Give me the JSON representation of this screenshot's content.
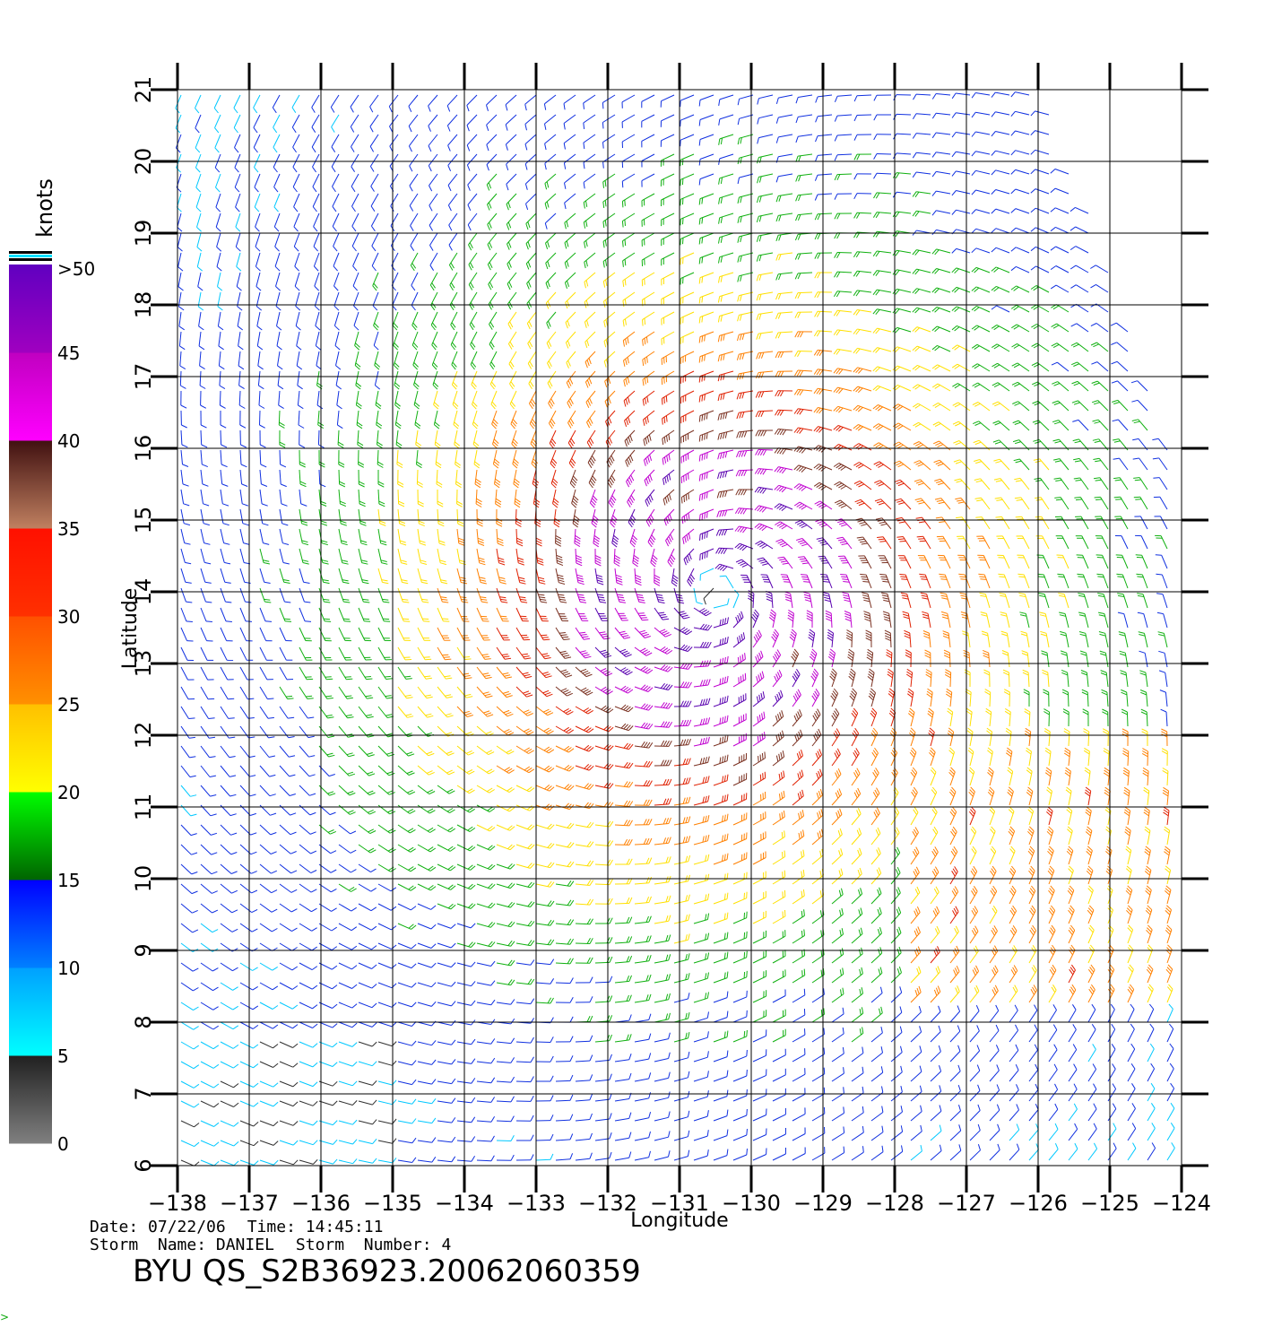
{
  "chart_data": {
    "type": "wind-barb-map",
    "xlabel": "Longitude",
    "ylabel": "Latitude",
    "xlim": [
      -138,
      -124
    ],
    "ylim": [
      6,
      21
    ],
    "x_ticks": [
      "-138",
      "-137",
      "-136",
      "-135",
      "-134",
      "-133",
      "-132",
      "-131",
      "-130",
      "-129",
      "-128",
      "-127",
      "-126",
      "-125",
      "-124"
    ],
    "y_ticks": [
      "6",
      "7",
      "8",
      "9",
      "10",
      "11",
      "12",
      "13",
      "14",
      "15",
      "16",
      "17",
      "18",
      "19",
      "20",
      "21"
    ],
    "storm_center": {
      "lon": -130.5,
      "lat": 14.0
    },
    "colorbar": {
      "unit": "knots",
      "labels": [
        "0",
        "5",
        "10",
        "15",
        "20",
        "25",
        "30",
        "35",
        "40",
        "45",
        ">50"
      ],
      "bands": [
        {
          "range": [
            0,
            5
          ],
          "colors": [
            "#808080",
            "#202020"
          ]
        },
        {
          "range": [
            5,
            10
          ],
          "colors": [
            "#00ffff",
            "#00a0ff"
          ]
        },
        {
          "range": [
            10,
            15
          ],
          "colors": [
            "#0080ff",
            "#0000ff"
          ]
        },
        {
          "range": [
            15,
            20
          ],
          "colors": [
            "#006400",
            "#00ff00"
          ]
        },
        {
          "range": [
            20,
            25
          ],
          "colors": [
            "#ffff00",
            "#ffc000"
          ]
        },
        {
          "range": [
            25,
            30
          ],
          "colors": [
            "#ff9000",
            "#ff5000"
          ]
        },
        {
          "range": [
            30,
            35
          ],
          "colors": [
            "#ff3000",
            "#ff1000"
          ]
        },
        {
          "range": [
            35,
            40
          ],
          "colors": [
            "#c08060",
            "#401010"
          ]
        },
        {
          "range": [
            40,
            45
          ],
          "colors": [
            "#ff00ff",
            "#c000c0"
          ]
        },
        {
          "range": [
            45,
            50
          ],
          "colors": [
            "#a000c0",
            "#6000c0"
          ]
        }
      ]
    }
  },
  "footer": {
    "date": "Date: 07/22/06",
    "time": "Time: 14:45:11",
    "storm_name": "Storm  Name: DANIEL",
    "storm_number": "Storm  Number: 4",
    "title": "BYU  QS_S2B36923.20062060359"
  }
}
